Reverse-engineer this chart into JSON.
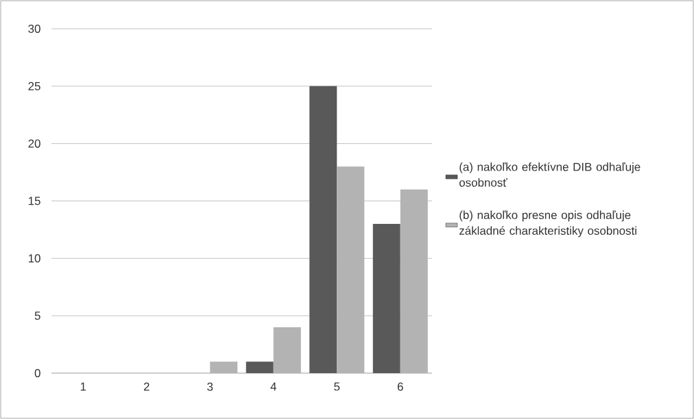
{
  "chart_data": {
    "type": "bar",
    "categories": [
      "1",
      "2",
      "3",
      "4",
      "5",
      "6"
    ],
    "series": [
      {
        "name": "(a) nakoľko efektívne DIB odhaľuje osobnosť",
        "color": "#595959",
        "values": [
          0,
          0,
          0,
          1,
          25,
          13
        ]
      },
      {
        "name": "(b) nakoľko presne opis odhaľuje základné charakteristiky osobnosti",
        "color": "#b3b3b3",
        "values": [
          0,
          0,
          1,
          4,
          18,
          16
        ]
      }
    ],
    "ylim": [
      0,
      30
    ],
    "yticks": [
      0,
      5,
      10,
      15,
      20,
      25,
      30
    ],
    "grid": "y",
    "legend": "right"
  }
}
